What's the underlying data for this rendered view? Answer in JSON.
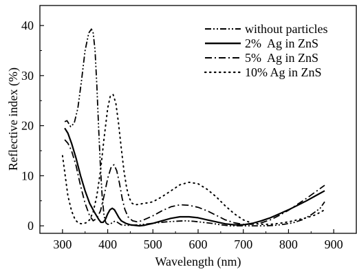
{
  "chart_data": {
    "type": "line",
    "title": "",
    "xlabel": "Wavelength (nm)",
    "ylabel": "Reflective index (%)",
    "xlim": [
      250,
      950
    ],
    "ylim": [
      -1.5,
      44
    ],
    "x_ticks": [
      300,
      400,
      500,
      600,
      700,
      800,
      900
    ],
    "y_ticks": [
      0,
      10,
      20,
      30,
      40
    ],
    "grid": false,
    "legend_position": "top-right",
    "series": [
      {
        "name": "without particles",
        "style": "dash-dot-dot",
        "x": [
          305,
          310,
          318,
          326,
          334,
          342,
          350,
          358,
          364,
          368,
          372,
          376,
          380,
          384,
          388,
          392,
          396,
          400,
          404,
          408,
          412,
          416,
          420,
          425,
          430,
          440,
          450,
          470,
          490,
          510,
          530,
          550,
          570,
          590,
          610,
          630,
          650,
          670,
          690,
          710,
          730,
          750,
          770,
          790,
          810,
          830,
          850,
          870,
          880
        ],
        "values": [
          20.8,
          21.0,
          19.8,
          20.5,
          23.5,
          29.0,
          35.0,
          38.5,
          39.3,
          38.5,
          35.0,
          28.0,
          19.5,
          11.5,
          5.5,
          2.0,
          0.6,
          0.3,
          0.3,
          0.5,
          0.8,
          0.9,
          0.8,
          0.5,
          0.2,
          0.1,
          0.1,
          0.2,
          0.4,
          0.6,
          0.8,
          0.9,
          1.0,
          0.9,
          0.7,
          0.5,
          0.2,
          0.0,
          0.0,
          0.0,
          0.0,
          0.0,
          0.1,
          0.3,
          0.6,
          1.2,
          2.2,
          3.5,
          4.8
        ]
      },
      {
        "name": "2%  Ag in ZnS",
        "style": "solid",
        "x": [
          305,
          312,
          320,
          330,
          340,
          350,
          360,
          370,
          380,
          385,
          390,
          395,
          400,
          405,
          410,
          415,
          420,
          425,
          430,
          440,
          450,
          460,
          470,
          480,
          490,
          500,
          520,
          540,
          560,
          580,
          600,
          620,
          640,
          660,
          680,
          700,
          720,
          740,
          760,
          780,
          800,
          820,
          840,
          860,
          880
        ],
        "values": [
          19.5,
          18.5,
          16.5,
          13.5,
          10.0,
          7.0,
          4.5,
          2.8,
          1.3,
          0.7,
          0.7,
          1.3,
          2.4,
          3.2,
          3.5,
          3.2,
          2.4,
          1.6,
          1.0,
          0.5,
          0.2,
          0.1,
          0.0,
          0.1,
          0.3,
          0.5,
          1.0,
          1.5,
          1.8,
          1.8,
          1.6,
          1.2,
          0.8,
          0.4,
          0.2,
          0.2,
          0.5,
          1.0,
          1.6,
          2.4,
          3.2,
          4.1,
          5.0,
          6.0,
          7.0
        ]
      },
      {
        "name": "5%  Ag in ZnS",
        "style": "dash-dot",
        "x": [
          305,
          312,
          320,
          330,
          340,
          350,
          360,
          368,
          376,
          384,
          392,
          400,
          408,
          414,
          420,
          426,
          432,
          438,
          445,
          455,
          465,
          475,
          485,
          500,
          520,
          540,
          560,
          580,
          600,
          620,
          640,
          660,
          680,
          700,
          720,
          740,
          760,
          780,
          800,
          820,
          840,
          860,
          880
        ],
        "values": [
          17.2,
          16.5,
          15.0,
          12.0,
          8.0,
          4.5,
          2.0,
          1.0,
          1.5,
          3.0,
          6.0,
          9.5,
          11.8,
          12.2,
          11.0,
          8.5,
          5.5,
          3.3,
          1.8,
          1.0,
          0.8,
          1.0,
          1.4,
          2.0,
          3.0,
          3.8,
          4.2,
          4.1,
          3.7,
          3.0,
          2.1,
          1.2,
          0.6,
          0.3,
          0.3,
          0.6,
          1.2,
          2.1,
          3.1,
          4.3,
          5.5,
          6.8,
          8.1
        ]
      },
      {
        "name": "10% Ag in ZnS",
        "style": "dotted",
        "x": [
          300,
          306,
          312,
          320,
          328,
          336,
          344,
          352,
          360,
          368,
          376,
          384,
          392,
          400,
          406,
          412,
          418,
          424,
          430,
          436,
          442,
          448,
          454,
          460,
          470,
          480,
          490,
          500,
          520,
          540,
          560,
          580,
          600,
          620,
          640,
          660,
          680,
          700,
          720,
          740,
          760,
          780,
          800,
          820,
          840,
          860,
          880
        ],
        "values": [
          14.0,
          10.0,
          6.0,
          3.0,
          1.2,
          0.5,
          0.4,
          0.6,
          1.2,
          2.8,
          6.0,
          11.0,
          17.5,
          23.5,
          26.0,
          26.2,
          24.5,
          20.5,
          15.5,
          11.0,
          7.5,
          5.5,
          4.5,
          4.2,
          4.3,
          4.5,
          4.6,
          4.8,
          5.8,
          7.0,
          8.2,
          8.7,
          8.4,
          7.3,
          5.8,
          4.0,
          2.4,
          1.2,
          0.5,
          0.3,
          0.3,
          0.5,
          0.8,
          1.2,
          1.6,
          2.2,
          3.2
        ]
      }
    ]
  }
}
